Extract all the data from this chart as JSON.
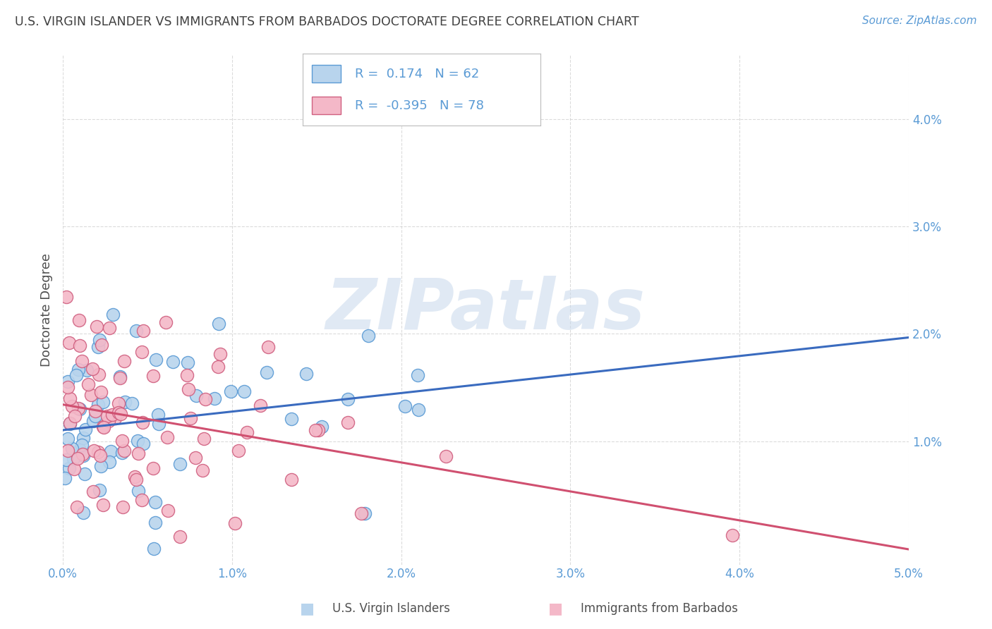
{
  "title": "U.S. VIRGIN ISLANDER VS IMMIGRANTS FROM BARBADOS DOCTORATE DEGREE CORRELATION CHART",
  "source": "Source: ZipAtlas.com",
  "ylabel": "Doctorate Degree",
  "xlim": [
    0.0,
    5.0
  ],
  "ylim": [
    -0.15,
    4.6
  ],
  "xtick_values": [
    0.0,
    1.0,
    2.0,
    3.0,
    4.0,
    5.0
  ],
  "ytick_values": [
    1.0,
    2.0,
    3.0,
    4.0
  ],
  "series": [
    {
      "name": "U.S. Virgin Islanders",
      "color": "#b8d4ed",
      "edge_color": "#5b9bd5",
      "R": 0.174,
      "N": 62,
      "line_color": "#3a6bbf",
      "seed": 42
    },
    {
      "name": "Immigrants from Barbados",
      "color": "#f4b8c8",
      "edge_color": "#d06080",
      "R": -0.395,
      "N": 78,
      "line_color": "#d05070",
      "seed": 77
    }
  ],
  "legend_R_values": [
    "0.174",
    "-0.395"
  ],
  "legend_N_values": [
    "62",
    "78"
  ],
  "watermark_text": "ZIPatlas",
  "background_color": "#ffffff",
  "grid_color": "#cccccc",
  "title_color": "#404040",
  "tick_color": "#5b9bd5"
}
